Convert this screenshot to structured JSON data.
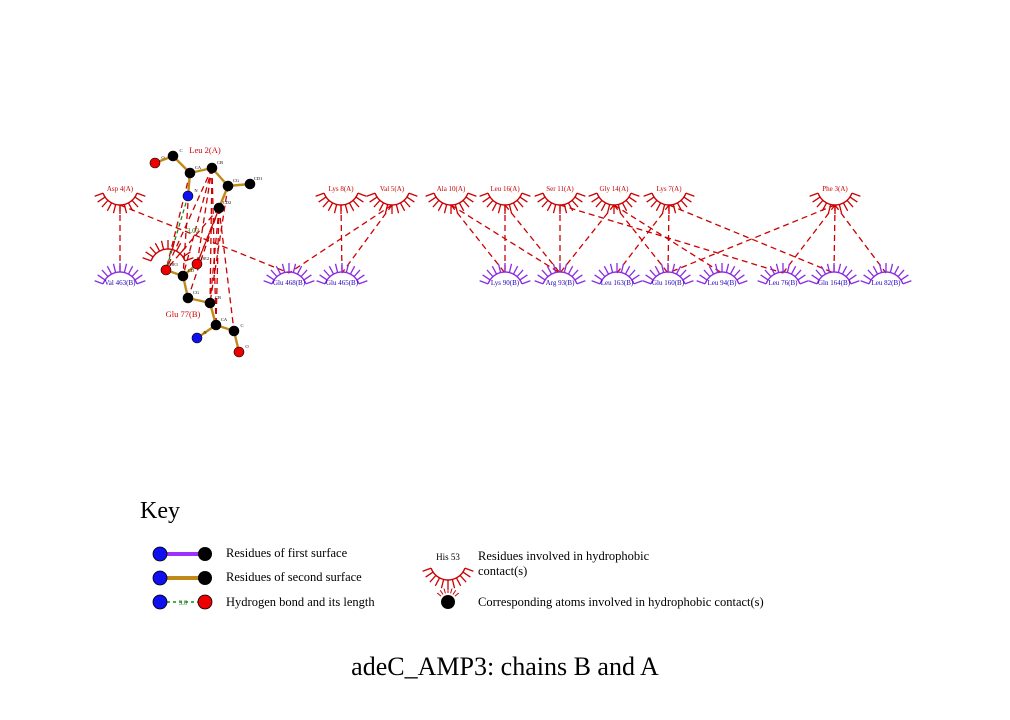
{
  "colors": {
    "red": "#cc0000",
    "purple": "#8a2be2",
    "blue_atom": "#1010ee",
    "red_atom": "#ee0000",
    "bond_brown": "#c08a1a",
    "hbond_green": "#1a8a1a",
    "label_blue": "#2200bb"
  },
  "ligand_residue": {
    "leu2_label": "Leu 2(A)",
    "glu77_label": "Glu 77(B)",
    "atoms_leu2": [
      "O",
      "C",
      "CA",
      "N",
      "CB",
      "CG",
      "CD1",
      "CD2"
    ],
    "atoms_glu77": [
      "OE1",
      "OE2",
      "CD",
      "CG",
      "CB",
      "CA",
      "N",
      "C",
      "O"
    ],
    "hbond_length": "3.02"
  },
  "top_residues": [
    "Asp 4(A)",
    "Lys 8(A)",
    "Val 5(A)",
    "Ala 10(A)",
    "Leu 16(A)",
    "Ser 11(A)",
    "Gly 14(A)",
    "Lys 7(A)",
    "Phe 3(A)"
  ],
  "bottom_residues": [
    "Val 463(B)",
    "Glu 468(B)",
    "Glu 465(B)",
    "Lys 90(B)",
    "Arg 93(B)",
    "Leu 163(B)",
    "Glu 160(B)",
    "Leu 94(B)",
    "Leu 76(B)",
    "Gln 164(B)",
    "Leu 82(B)"
  ],
  "key": {
    "title": "Key",
    "first_surface": "Residues of first surface",
    "second_surface": "Residues of second surface",
    "hbond": "Hydrogen bond and its length",
    "hbond_example_length": "3.0",
    "hydrophobic_example_label": "His 53",
    "hydrophobic_residues": "Residues involved in hydrophobic contact(s)",
    "hydrophobic_atoms": "Corresponding atoms involved in hydrophobic contact(s)"
  },
  "footer_title": "adeC_AMP3: chains B and A"
}
